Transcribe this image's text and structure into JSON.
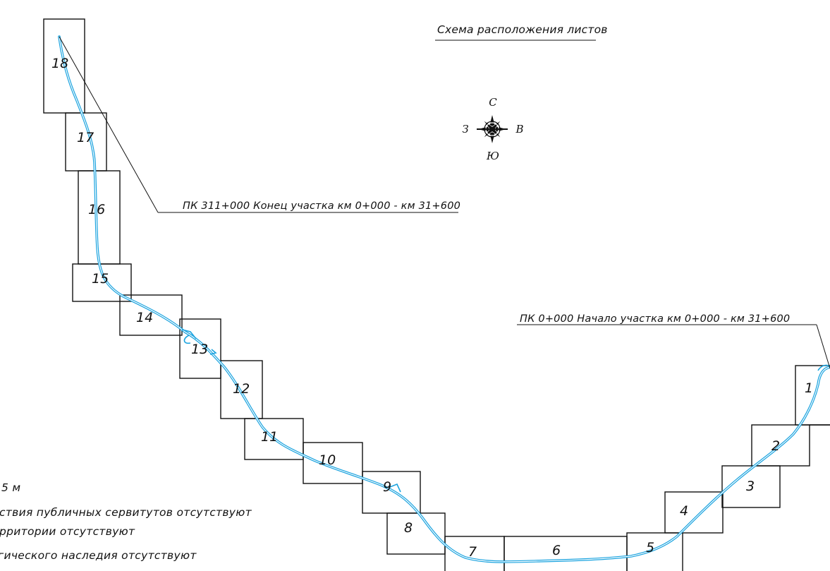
{
  "title": "Схема расположения листов",
  "compass": {
    "north": "С",
    "south": "Ю",
    "west": "З",
    "east": "В"
  },
  "callouts": {
    "end": "ПК 311+000 Конец участка км 0+000 - км 31+600",
    "start": "ПК 0+000 Начало участка км 0+000 - км 31+600"
  },
  "sheets": [
    "1",
    "2",
    "3",
    "4",
    "5",
    "6",
    "7",
    "8",
    "9",
    "10",
    "11",
    "12",
    "13",
    "14",
    "15",
    "16",
    "17",
    "18"
  ],
  "notes": [
    "5 м",
    "ствия публичных сервитутов отсутствуют",
    "рритории отсутствуют",
    "гического наследия отсутствуют"
  ],
  "colors": {
    "route": "#1aa3df",
    "lines": "#111111",
    "background": "#ffffff"
  }
}
